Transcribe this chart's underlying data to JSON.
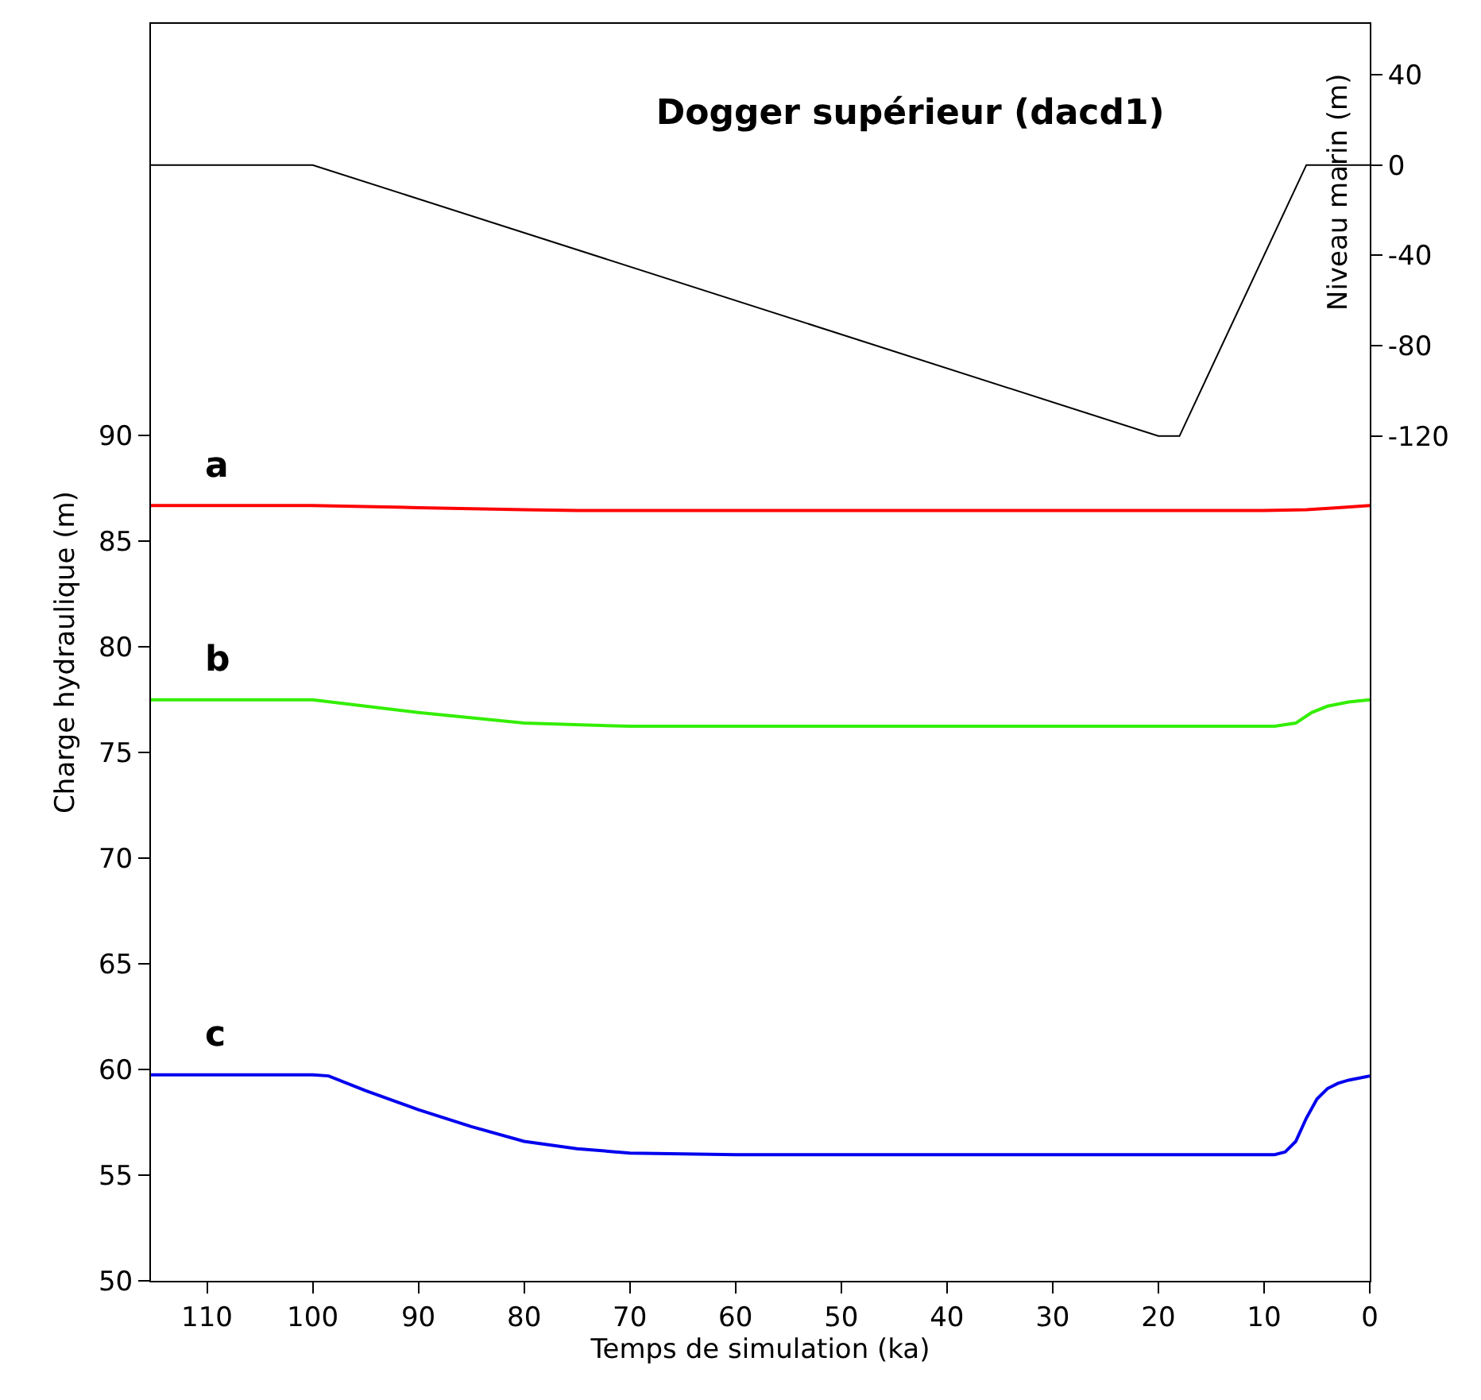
{
  "chart_data": {
    "type": "line",
    "title": "Dogger supérieur (dacd1)",
    "xlabel": "Temps de simulation (ka)",
    "ylabel": "Charge hydraulique (m)",
    "y2label": "Niveau marin (m)",
    "xlim": [
      115.3,
      0
    ],
    "xticks": [
      110,
      100,
      90,
      80,
      70,
      60,
      50,
      40,
      30,
      20,
      10,
      0
    ],
    "ylim": [
      50,
      109.5
    ],
    "yticks": [
      50,
      55,
      60,
      65,
      70,
      75,
      80,
      85,
      90
    ],
    "y2lim": [
      -494,
      62.5
    ],
    "y2ticks": [
      40,
      0,
      -40,
      -80,
      -120
    ],
    "legend": false,
    "marker": "none",
    "line_style": "solid",
    "series": [
      {
        "name": "a",
        "color": "#ff0000",
        "x": [
          115.3,
          100,
          90,
          80,
          75,
          10,
          6,
          3,
          0
        ],
        "values": [
          86.7,
          86.7,
          86.6,
          86.5,
          86.46,
          86.46,
          86.5,
          86.6,
          86.7
        ]
      },
      {
        "name": "b",
        "color": "#33ee00",
        "x": [
          115.3,
          100,
          95,
          90,
          80,
          70,
          60,
          9,
          7,
          5.5,
          4,
          2,
          0
        ],
        "values": [
          77.5,
          77.5,
          77.2,
          76.9,
          76.4,
          76.25,
          76.25,
          76.25,
          76.4,
          76.9,
          77.2,
          77.4,
          77.5
        ]
      },
      {
        "name": "c",
        "color": "#0000ee",
        "x": [
          115.3,
          100,
          98.5,
          95,
          90,
          85,
          80,
          75,
          70,
          60,
          9,
          8,
          7,
          6,
          5,
          4,
          3,
          2,
          0
        ],
        "values": [
          59.75,
          59.75,
          59.7,
          59.0,
          58.1,
          57.3,
          56.6,
          56.25,
          56.05,
          55.97,
          55.97,
          56.1,
          56.6,
          57.7,
          58.6,
          59.1,
          59.35,
          59.5,
          59.7
        ]
      },
      {
        "color": "#000000",
        "axis": "y2",
        "x": [
          115.3,
          100,
          20,
          18,
          6,
          0
        ],
        "values": [
          0,
          0,
          -120,
          -120,
          0,
          0
        ]
      }
    ]
  }
}
